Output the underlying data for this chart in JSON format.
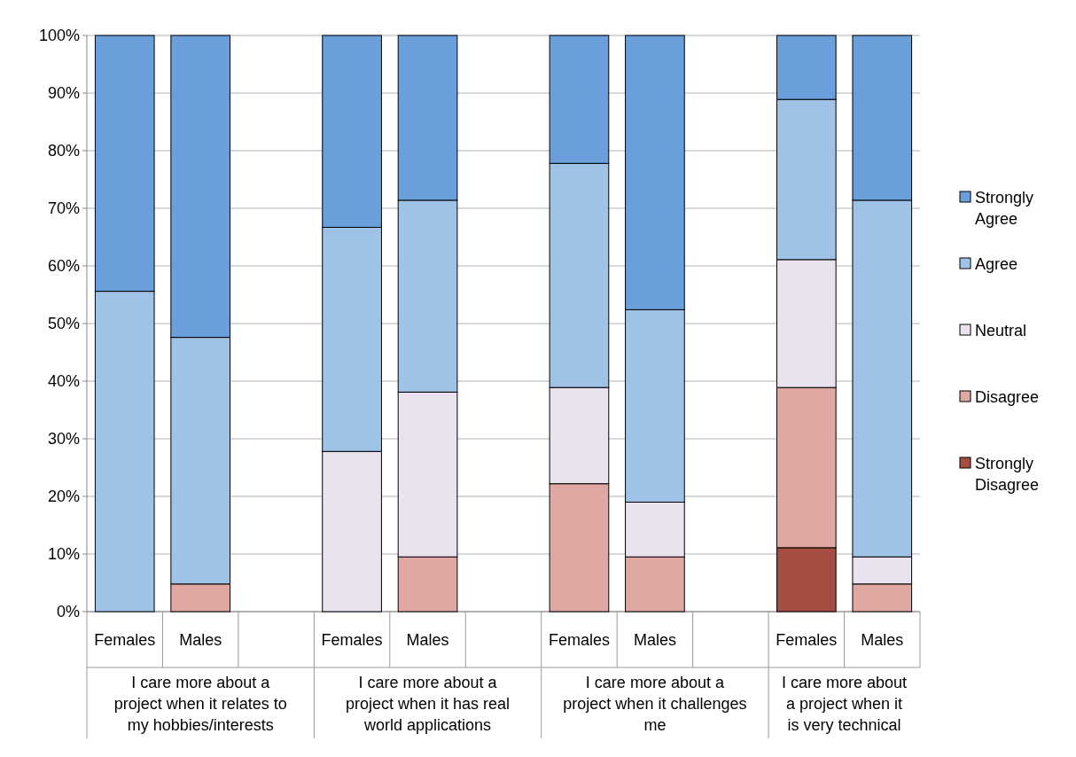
{
  "chart_data": {
    "type": "bar",
    "stacked": true,
    "categories": [
      "Females",
      "Males",
      null,
      "Females",
      "Males",
      null,
      "Females",
      "Males",
      null,
      "Females",
      "Males"
    ],
    "series": [
      {
        "name": "Strongly Disagree",
        "color": "#a64d42",
        "values": [
          0,
          0,
          null,
          0,
          0,
          null,
          0,
          0,
          null,
          11.1,
          0
        ]
      },
      {
        "name": "Disagree",
        "color": "#e0a8a2",
        "values": [
          0,
          4.8,
          null,
          0,
          9.5,
          null,
          22.2,
          9.5,
          null,
          27.8,
          4.8
        ]
      },
      {
        "name": "Neutral",
        "color": "#ebe2ef",
        "values": [
          0,
          0,
          null,
          27.8,
          28.6,
          null,
          16.7,
          9.5,
          null,
          22.2,
          4.7
        ]
      },
      {
        "name": "Agree",
        "color": "#9fc3e6",
        "values": [
          55.6,
          42.8,
          null,
          38.9,
          33.3,
          null,
          38.9,
          33.4,
          null,
          27.8,
          61.9
        ]
      },
      {
        "name": "Strongly Agree",
        "color": "#6a9fdc",
        "values": [
          44.4,
          52.4,
          null,
          33.3,
          28.6,
          null,
          22.2,
          47.6,
          null,
          11.1,
          28.6
        ]
      }
    ],
    "annotations": [
      "I care more about a project when it relates to my hobbies/interests",
      "I care more about a project when it has real world applications",
      "I care more about a project when it challenges me",
      "I care more about a project when it is very technical"
    ],
    "ylim": [
      0,
      100
    ],
    "yticks": [
      {
        "value": 0,
        "label": "0%"
      },
      {
        "value": 10,
        "label": "10%"
      },
      {
        "value": 20,
        "label": "20%"
      },
      {
        "value": 30,
        "label": "30%"
      },
      {
        "value": 40,
        "label": "40%"
      },
      {
        "value": 50,
        "label": "50%"
      },
      {
        "value": 60,
        "label": "60%"
      },
      {
        "value": 70,
        "label": "70%"
      },
      {
        "value": 80,
        "label": "80%"
      },
      {
        "value": 90,
        "label": "90%"
      },
      {
        "value": 100,
        "label": "100%"
      }
    ],
    "grid": "y",
    "legend": "right"
  }
}
